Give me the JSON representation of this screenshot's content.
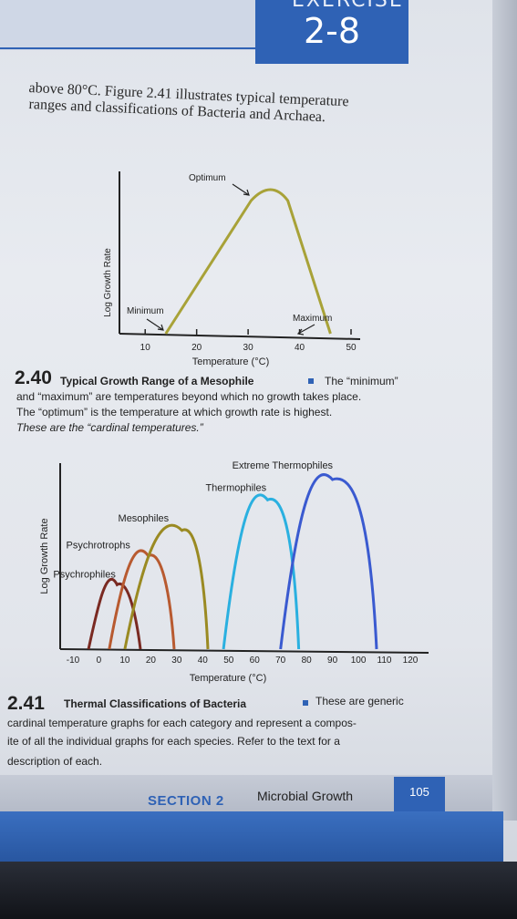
{
  "header": {
    "exercise_word": "EXERCISE",
    "exercise_number": "2-8"
  },
  "body_text": {
    "line1": "above 80°C. Figure 2.41 illustrates typical temperature",
    "line2": "ranges and classifications of Bacteria and Archaea."
  },
  "figure1": {
    "labels": {
      "optimum": "Optimum",
      "minimum": "Minimum",
      "maximum": "Maximum"
    },
    "caption": {
      "number": "2.40",
      "title": "Typical Growth Range of a Mesophile",
      "text1": "The “minimum”",
      "text2": "and “maximum” are temperatures beyond which no growth takes place.",
      "text3": "The “optimum” is the temperature at which growth rate is highest.",
      "text4": "These are the “cardinal temperatures.”"
    }
  },
  "figure2": {
    "caption": {
      "number": "2.41",
      "title": "Thermal Classifications of Bacteria",
      "text1": "These are generic",
      "text2": "cardinal temperature graphs for each category and represent a compos-",
      "text3": "ite of all the individual graphs for each species. Refer to the text for a",
      "text4": "description of each."
    }
  },
  "footer": {
    "section_label": "SECTION 2",
    "section_title": "Microbial Growth",
    "page_number": "105"
  },
  "chart_data": [
    {
      "type": "line",
      "xlabel": "Temperature (°C)",
      "ylabel": "Log Growth Rate",
      "x_ticks": [
        10,
        20,
        30,
        40,
        50
      ],
      "xlim": [
        5,
        50
      ],
      "ylim": [
        0,
        1
      ],
      "series": [
        {
          "points": [
            [
              14,
              0
            ],
            [
              32,
              1
            ],
            [
              37,
              1
            ],
            [
              46,
              0
            ]
          ]
        }
      ],
      "color": "#a8a238"
    },
    {
      "type": "line",
      "xlabel": "Temperature (°C)",
      "ylabel": "Log Growth Rate",
      "x_ticks": [
        -10,
        0,
        10,
        20,
        30,
        40,
        50,
        60,
        70,
        80,
        90,
        100,
        110,
        120
      ],
      "xlim": [
        -15,
        125
      ],
      "ylim": [
        0,
        1
      ],
      "series": [
        {
          "name": "Psychrophiles",
          "peak": 7,
          "min": -4,
          "max": 16,
          "height": 0.38,
          "color": "#7a2a22"
        },
        {
          "name": "Psychrotrophs",
          "peak": 19,
          "min": 4,
          "max": 29,
          "height": 0.55,
          "color": "#b85a30"
        },
        {
          "name": "Mesophiles",
          "peak": 32,
          "min": 10,
          "max": 42,
          "height": 0.7,
          "color": "#9a8a22"
        },
        {
          "name": "Thermophiles",
          "peak": 65,
          "min": 48,
          "max": 77,
          "height": 0.88,
          "color": "#2ab0e0"
        },
        {
          "name": "Extreme Thermophiles",
          "peak": 90,
          "min": 70,
          "max": 107,
          "height": 1.0,
          "color": "#3a5ad0"
        }
      ]
    }
  ]
}
